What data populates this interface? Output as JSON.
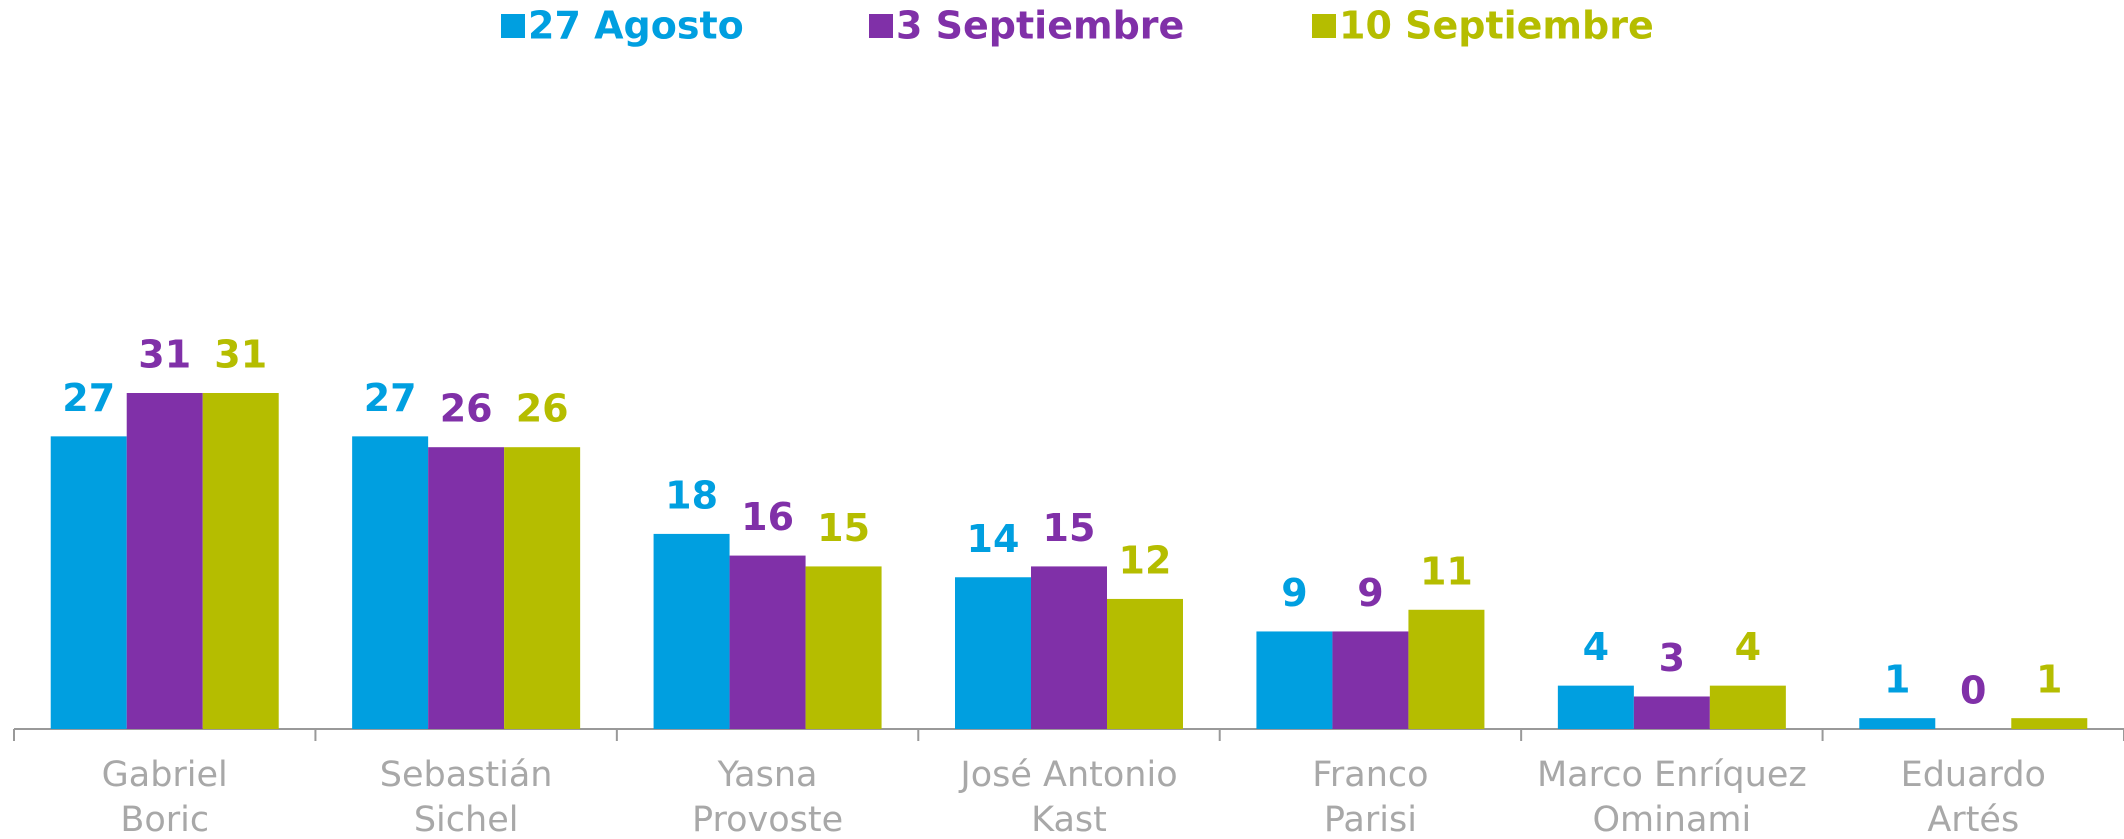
{
  "chart_data": {
    "type": "bar",
    "categories": [
      "Gabriel\nBoric",
      "Sebastián\nSichel",
      "Yasna\nProvoste",
      "José Antonio\nKast",
      "Franco\nParisi",
      "Marco Enríquez\nOminami",
      "Eduardo\nArtés"
    ],
    "series": [
      {
        "name": "27 Agosto",
        "color": "#009fe0",
        "values": [
          27,
          27,
          18,
          14,
          9,
          4,
          1
        ]
      },
      {
        "name": "3 Septiembre",
        "color": "#8030a8",
        "values": [
          31,
          26,
          16,
          15,
          9,
          3,
          0
        ]
      },
      {
        "name": "10 Septiembre",
        "color": "#b5bd00",
        "values": [
          31,
          26,
          15,
          12,
          11,
          4,
          1
        ]
      }
    ],
    "ylim": [
      0,
      62
    ],
    "legend": "top"
  }
}
